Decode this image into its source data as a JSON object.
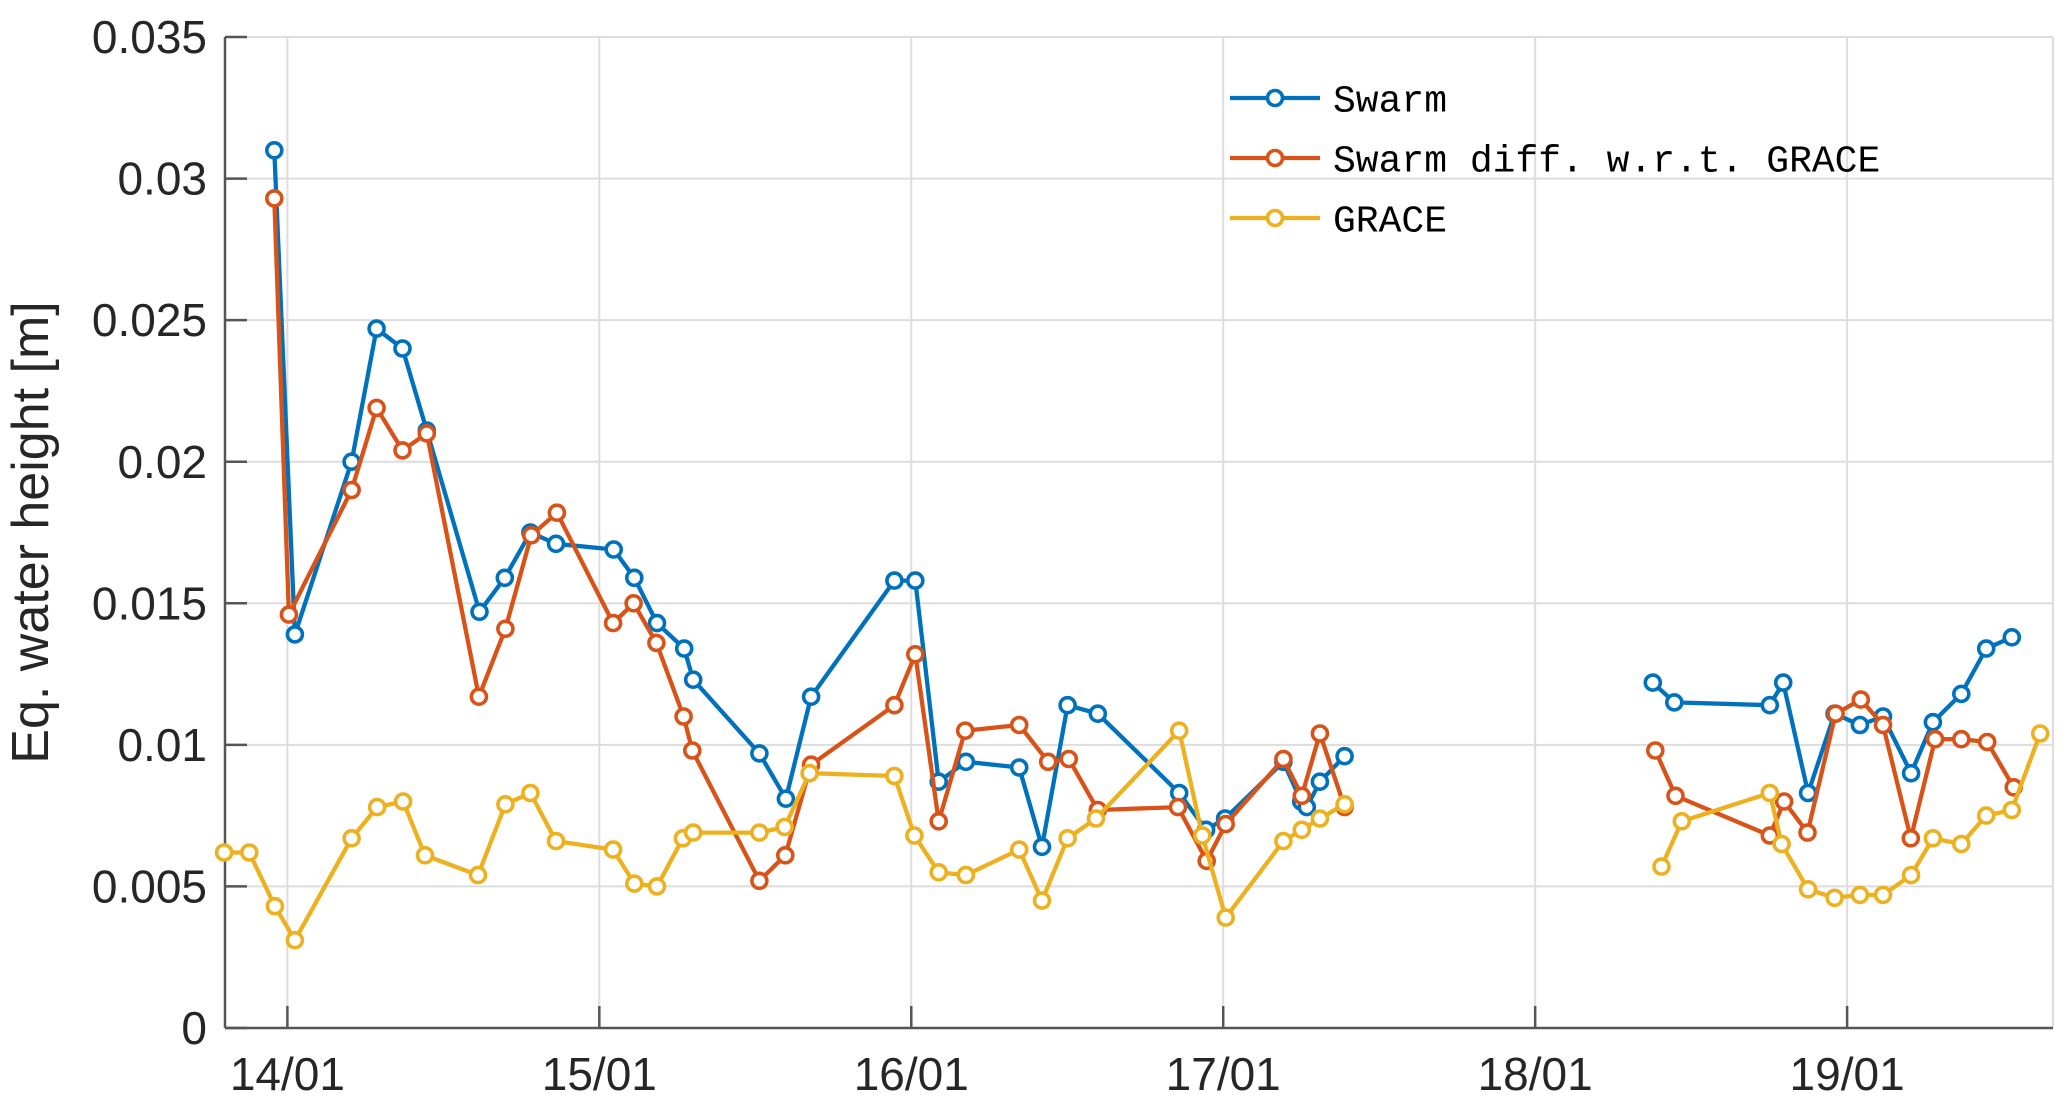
{
  "chart_data": {
    "type": "line",
    "title": "",
    "xlabel": "",
    "ylabel": "Eq. water height [m]",
    "xlim": [
      13.8,
      19.66
    ],
    "ylim": [
      0,
      0.035
    ],
    "grid": true,
    "legend_position": "top-right-inside",
    "background_color": "#ffffff",
    "axis_color": "#555555",
    "grid_color": "#dddddd",
    "text_color": "#262626",
    "x_ticks": [
      {
        "value": 14,
        "label": "14/01"
      },
      {
        "value": 15,
        "label": "15/01"
      },
      {
        "value": 16,
        "label": "16/01"
      },
      {
        "value": 17,
        "label": "17/01"
      },
      {
        "value": 18,
        "label": "18/01"
      },
      {
        "value": 19,
        "label": "19/01"
      }
    ],
    "y_ticks": [
      {
        "value": 0.0,
        "label": "0"
      },
      {
        "value": 0.005,
        "label": "0.005"
      },
      {
        "value": 0.01,
        "label": "0.01"
      },
      {
        "value": 0.015,
        "label": "0.015"
      },
      {
        "value": 0.02,
        "label": "0.02"
      },
      {
        "value": 0.025,
        "label": "0.025"
      },
      {
        "value": 0.03,
        "label": "0.03"
      },
      {
        "value": 0.035,
        "label": "0.035"
      }
    ],
    "series": [
      {
        "name": "Swarm",
        "color": "#0072BD",
        "marker": "o",
        "segments": [
          [
            [
              13.958,
              0.031
            ],
            [
              14.024,
              0.0139
            ],
            [
              14.206,
              0.02
            ],
            [
              14.286,
              0.0247
            ],
            [
              14.369,
              0.024
            ],
            [
              14.447,
              0.0211
            ],
            [
              14.616,
              0.0147
            ],
            [
              14.697,
              0.0159
            ],
            [
              14.779,
              0.0175
            ],
            [
              14.861,
              0.0171
            ],
            [
              15.046,
              0.0169
            ],
            [
              15.112,
              0.0159
            ],
            [
              15.185,
              0.0143
            ],
            [
              15.272,
              0.0134
            ],
            [
              15.301,
              0.0123
            ],
            [
              15.513,
              0.0097
            ],
            [
              15.598,
              0.0081
            ],
            [
              15.679,
              0.0117
            ],
            [
              15.946,
              0.0158
            ],
            [
              16.013,
              0.0158
            ],
            [
              16.088,
              0.0087
            ],
            [
              16.175,
              0.0094
            ],
            [
              16.346,
              0.0092
            ],
            [
              16.419,
              0.0064
            ],
            [
              16.501,
              0.0114
            ],
            [
              16.598,
              0.0111
            ],
            [
              16.859,
              0.0083
            ],
            [
              16.945,
              0.007
            ],
            [
              17.006,
              0.0074
            ],
            [
              17.193,
              0.0094
            ],
            [
              17.25,
              0.008
            ],
            [
              17.268,
              0.0078
            ],
            [
              17.31,
              0.0087
            ],
            [
              17.389,
              0.0096
            ]
          ],
          [
            [
              18.377,
              0.0122
            ],
            [
              18.446,
              0.0115
            ],
            [
              18.752,
              0.0114
            ],
            [
              18.795,
              0.0122
            ],
            [
              18.875,
              0.0083
            ],
            [
              18.96,
              0.0111
            ],
            [
              19.041,
              0.0107
            ],
            [
              19.115,
              0.011
            ],
            [
              19.205,
              0.009
            ],
            [
              19.275,
              0.0108
            ],
            [
              19.366,
              0.0118
            ],
            [
              19.446,
              0.0134
            ],
            [
              19.528,
              0.0138
            ]
          ]
        ]
      },
      {
        "name": "Swarm diff. w.r.t. GRACE",
        "color": "#D95319",
        "marker": "o",
        "segments": [
          [
            [
              13.958,
              0.0293
            ],
            [
              14.005,
              0.0146
            ],
            [
              14.206,
              0.019
            ],
            [
              14.286,
              0.0219
            ],
            [
              14.369,
              0.0204
            ],
            [
              14.447,
              0.021
            ],
            [
              14.614,
              0.0117
            ],
            [
              14.699,
              0.0141
            ],
            [
              14.782,
              0.0174
            ],
            [
              14.864,
              0.0182
            ],
            [
              15.044,
              0.0143
            ],
            [
              15.11,
              0.015
            ],
            [
              15.183,
              0.0136
            ],
            [
              15.27,
              0.011
            ],
            [
              15.298,
              0.0098
            ],
            [
              15.513,
              0.0052
            ],
            [
              15.596,
              0.0061
            ],
            [
              15.679,
              0.0093
            ],
            [
              15.946,
              0.0114
            ],
            [
              16.013,
              0.0132
            ],
            [
              16.088,
              0.0073
            ],
            [
              16.173,
              0.0105
            ],
            [
              16.346,
              0.0107
            ],
            [
              16.439,
              0.0094
            ],
            [
              16.505,
              0.0095
            ],
            [
              16.598,
              0.0077
            ],
            [
              16.855,
              0.0078
            ],
            [
              16.947,
              0.0059
            ],
            [
              17.008,
              0.0072
            ],
            [
              17.193,
              0.0095
            ],
            [
              17.252,
              0.0082
            ],
            [
              17.31,
              0.0104
            ],
            [
              17.389,
              0.0078
            ]
          ],
          [
            [
              18.385,
              0.0098
            ],
            [
              18.45,
              0.0082
            ],
            [
              18.752,
              0.0068
            ],
            [
              18.798,
              0.008
            ],
            [
              18.873,
              0.0069
            ],
            [
              18.963,
              0.0111
            ],
            [
              19.044,
              0.0116
            ],
            [
              19.115,
              0.0107
            ],
            [
              19.204,
              0.0067
            ],
            [
              19.282,
              0.0102
            ],
            [
              19.366,
              0.0102
            ],
            [
              19.449,
              0.0101
            ],
            [
              19.534,
              0.0085
            ]
          ]
        ]
      },
      {
        "name": "GRACE",
        "color": "#EDB120",
        "marker": "o",
        "segments": [
          [
            [
              13.797,
              0.0062
            ],
            [
              13.878,
              0.0062
            ],
            [
              13.96,
              0.0043
            ],
            [
              14.024,
              0.0031
            ],
            [
              14.206,
              0.0067
            ],
            [
              14.288,
              0.0078
            ],
            [
              14.371,
              0.008
            ],
            [
              14.441,
              0.0061
            ],
            [
              14.611,
              0.0054
            ],
            [
              14.699,
              0.0079
            ],
            [
              14.779,
              0.0083
            ],
            [
              14.861,
              0.0066
            ],
            [
              15.044,
              0.0063
            ],
            [
              15.112,
              0.0051
            ],
            [
              15.185,
              0.005
            ],
            [
              15.268,
              0.0067
            ],
            [
              15.301,
              0.0069
            ],
            [
              15.513,
              0.0069
            ],
            [
              15.594,
              0.0071
            ],
            [
              15.674,
              0.009
            ],
            [
              15.946,
              0.0089
            ],
            [
              16.01,
              0.0068
            ],
            [
              16.088,
              0.0055
            ],
            [
              16.175,
              0.0054
            ],
            [
              16.346,
              0.0063
            ],
            [
              16.419,
              0.0045
            ],
            [
              16.501,
              0.0067
            ],
            [
              16.592,
              0.0074
            ],
            [
              16.859,
              0.0105
            ],
            [
              16.933,
              0.0068
            ],
            [
              17.008,
              0.0039
            ],
            [
              17.193,
              0.0066
            ],
            [
              17.252,
              0.007
            ],
            [
              17.31,
              0.0074
            ],
            [
              17.389,
              0.0079
            ]
          ],
          [
            [
              18.405,
              0.0057
            ],
            [
              18.47,
              0.0073
            ],
            [
              18.752,
              0.0083
            ],
            [
              18.79,
              0.0065
            ],
            [
              18.875,
              0.0049
            ],
            [
              18.96,
              0.0046
            ],
            [
              19.041,
              0.0047
            ],
            [
              19.115,
              0.0047
            ],
            [
              19.205,
              0.0054
            ],
            [
              19.275,
              0.0067
            ],
            [
              19.366,
              0.0065
            ],
            [
              19.446,
              0.0075
            ],
            [
              19.528,
              0.0077
            ],
            [
              19.619,
              0.0104
            ]
          ]
        ]
      }
    ]
  }
}
